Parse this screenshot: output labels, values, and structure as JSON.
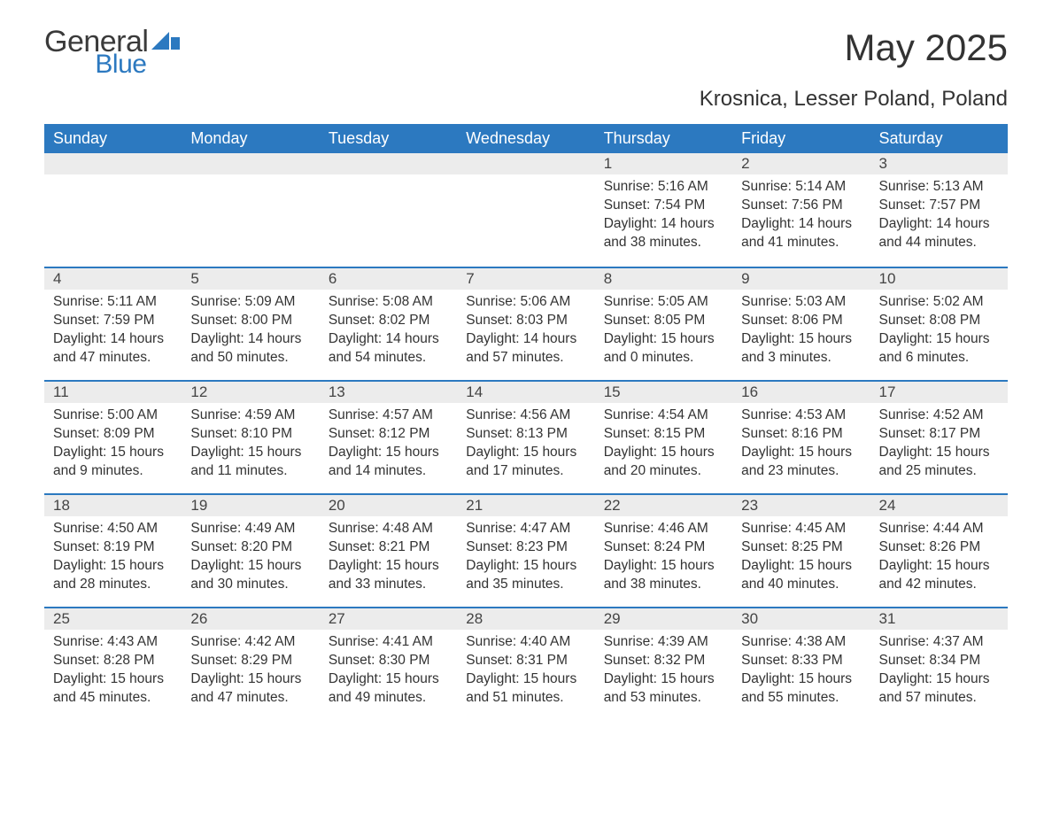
{
  "brand": {
    "word1": "General",
    "word2": "Blue",
    "accent_color": "#2c79c0"
  },
  "title": "May 2025",
  "subtitle": "Krosnica, Lesser Poland, Poland",
  "colors": {
    "header_bg": "#2c79c0",
    "header_text": "#ffffff",
    "daynum_bg": "#ececec",
    "body_text": "#333333",
    "page_bg": "#ffffff",
    "row_border": "#2c79c0"
  },
  "typography": {
    "title_fontsize": 42,
    "subtitle_fontsize": 24,
    "header_fontsize": 18,
    "daynum_fontsize": 17,
    "body_fontsize": 15.5,
    "font_family": "Arial"
  },
  "layout": {
    "columns": 7,
    "rows": 5,
    "leading_blanks": 4
  },
  "day_headers": [
    "Sunday",
    "Monday",
    "Tuesday",
    "Wednesday",
    "Thursday",
    "Friday",
    "Saturday"
  ],
  "labels": {
    "sunrise": "Sunrise: ",
    "sunset": "Sunset: ",
    "daylight": "Daylight: "
  },
  "days": [
    {
      "n": "1",
      "sunrise": "5:16 AM",
      "sunset": "7:54 PM",
      "daylight": "14 hours and 38 minutes."
    },
    {
      "n": "2",
      "sunrise": "5:14 AM",
      "sunset": "7:56 PM",
      "daylight": "14 hours and 41 minutes."
    },
    {
      "n": "3",
      "sunrise": "5:13 AM",
      "sunset": "7:57 PM",
      "daylight": "14 hours and 44 minutes."
    },
    {
      "n": "4",
      "sunrise": "5:11 AM",
      "sunset": "7:59 PM",
      "daylight": "14 hours and 47 minutes."
    },
    {
      "n": "5",
      "sunrise": "5:09 AM",
      "sunset": "8:00 PM",
      "daylight": "14 hours and 50 minutes."
    },
    {
      "n": "6",
      "sunrise": "5:08 AM",
      "sunset": "8:02 PM",
      "daylight": "14 hours and 54 minutes."
    },
    {
      "n": "7",
      "sunrise": "5:06 AM",
      "sunset": "8:03 PM",
      "daylight": "14 hours and 57 minutes."
    },
    {
      "n": "8",
      "sunrise": "5:05 AM",
      "sunset": "8:05 PM",
      "daylight": "15 hours and 0 minutes."
    },
    {
      "n": "9",
      "sunrise": "5:03 AM",
      "sunset": "8:06 PM",
      "daylight": "15 hours and 3 minutes."
    },
    {
      "n": "10",
      "sunrise": "5:02 AM",
      "sunset": "8:08 PM",
      "daylight": "15 hours and 6 minutes."
    },
    {
      "n": "11",
      "sunrise": "5:00 AM",
      "sunset": "8:09 PM",
      "daylight": "15 hours and 9 minutes."
    },
    {
      "n": "12",
      "sunrise": "4:59 AM",
      "sunset": "8:10 PM",
      "daylight": "15 hours and 11 minutes."
    },
    {
      "n": "13",
      "sunrise": "4:57 AM",
      "sunset": "8:12 PM",
      "daylight": "15 hours and 14 minutes."
    },
    {
      "n": "14",
      "sunrise": "4:56 AM",
      "sunset": "8:13 PM",
      "daylight": "15 hours and 17 minutes."
    },
    {
      "n": "15",
      "sunrise": "4:54 AM",
      "sunset": "8:15 PM",
      "daylight": "15 hours and 20 minutes."
    },
    {
      "n": "16",
      "sunrise": "4:53 AM",
      "sunset": "8:16 PM",
      "daylight": "15 hours and 23 minutes."
    },
    {
      "n": "17",
      "sunrise": "4:52 AM",
      "sunset": "8:17 PM",
      "daylight": "15 hours and 25 minutes."
    },
    {
      "n": "18",
      "sunrise": "4:50 AM",
      "sunset": "8:19 PM",
      "daylight": "15 hours and 28 minutes."
    },
    {
      "n": "19",
      "sunrise": "4:49 AM",
      "sunset": "8:20 PM",
      "daylight": "15 hours and 30 minutes."
    },
    {
      "n": "20",
      "sunrise": "4:48 AM",
      "sunset": "8:21 PM",
      "daylight": "15 hours and 33 minutes."
    },
    {
      "n": "21",
      "sunrise": "4:47 AM",
      "sunset": "8:23 PM",
      "daylight": "15 hours and 35 minutes."
    },
    {
      "n": "22",
      "sunrise": "4:46 AM",
      "sunset": "8:24 PM",
      "daylight": "15 hours and 38 minutes."
    },
    {
      "n": "23",
      "sunrise": "4:45 AM",
      "sunset": "8:25 PM",
      "daylight": "15 hours and 40 minutes."
    },
    {
      "n": "24",
      "sunrise": "4:44 AM",
      "sunset": "8:26 PM",
      "daylight": "15 hours and 42 minutes."
    },
    {
      "n": "25",
      "sunrise": "4:43 AM",
      "sunset": "8:28 PM",
      "daylight": "15 hours and 45 minutes."
    },
    {
      "n": "26",
      "sunrise": "4:42 AM",
      "sunset": "8:29 PM",
      "daylight": "15 hours and 47 minutes."
    },
    {
      "n": "27",
      "sunrise": "4:41 AM",
      "sunset": "8:30 PM",
      "daylight": "15 hours and 49 minutes."
    },
    {
      "n": "28",
      "sunrise": "4:40 AM",
      "sunset": "8:31 PM",
      "daylight": "15 hours and 51 minutes."
    },
    {
      "n": "29",
      "sunrise": "4:39 AM",
      "sunset": "8:32 PM",
      "daylight": "15 hours and 53 minutes."
    },
    {
      "n": "30",
      "sunrise": "4:38 AM",
      "sunset": "8:33 PM",
      "daylight": "15 hours and 55 minutes."
    },
    {
      "n": "31",
      "sunrise": "4:37 AM",
      "sunset": "8:34 PM",
      "daylight": "15 hours and 57 minutes."
    }
  ]
}
